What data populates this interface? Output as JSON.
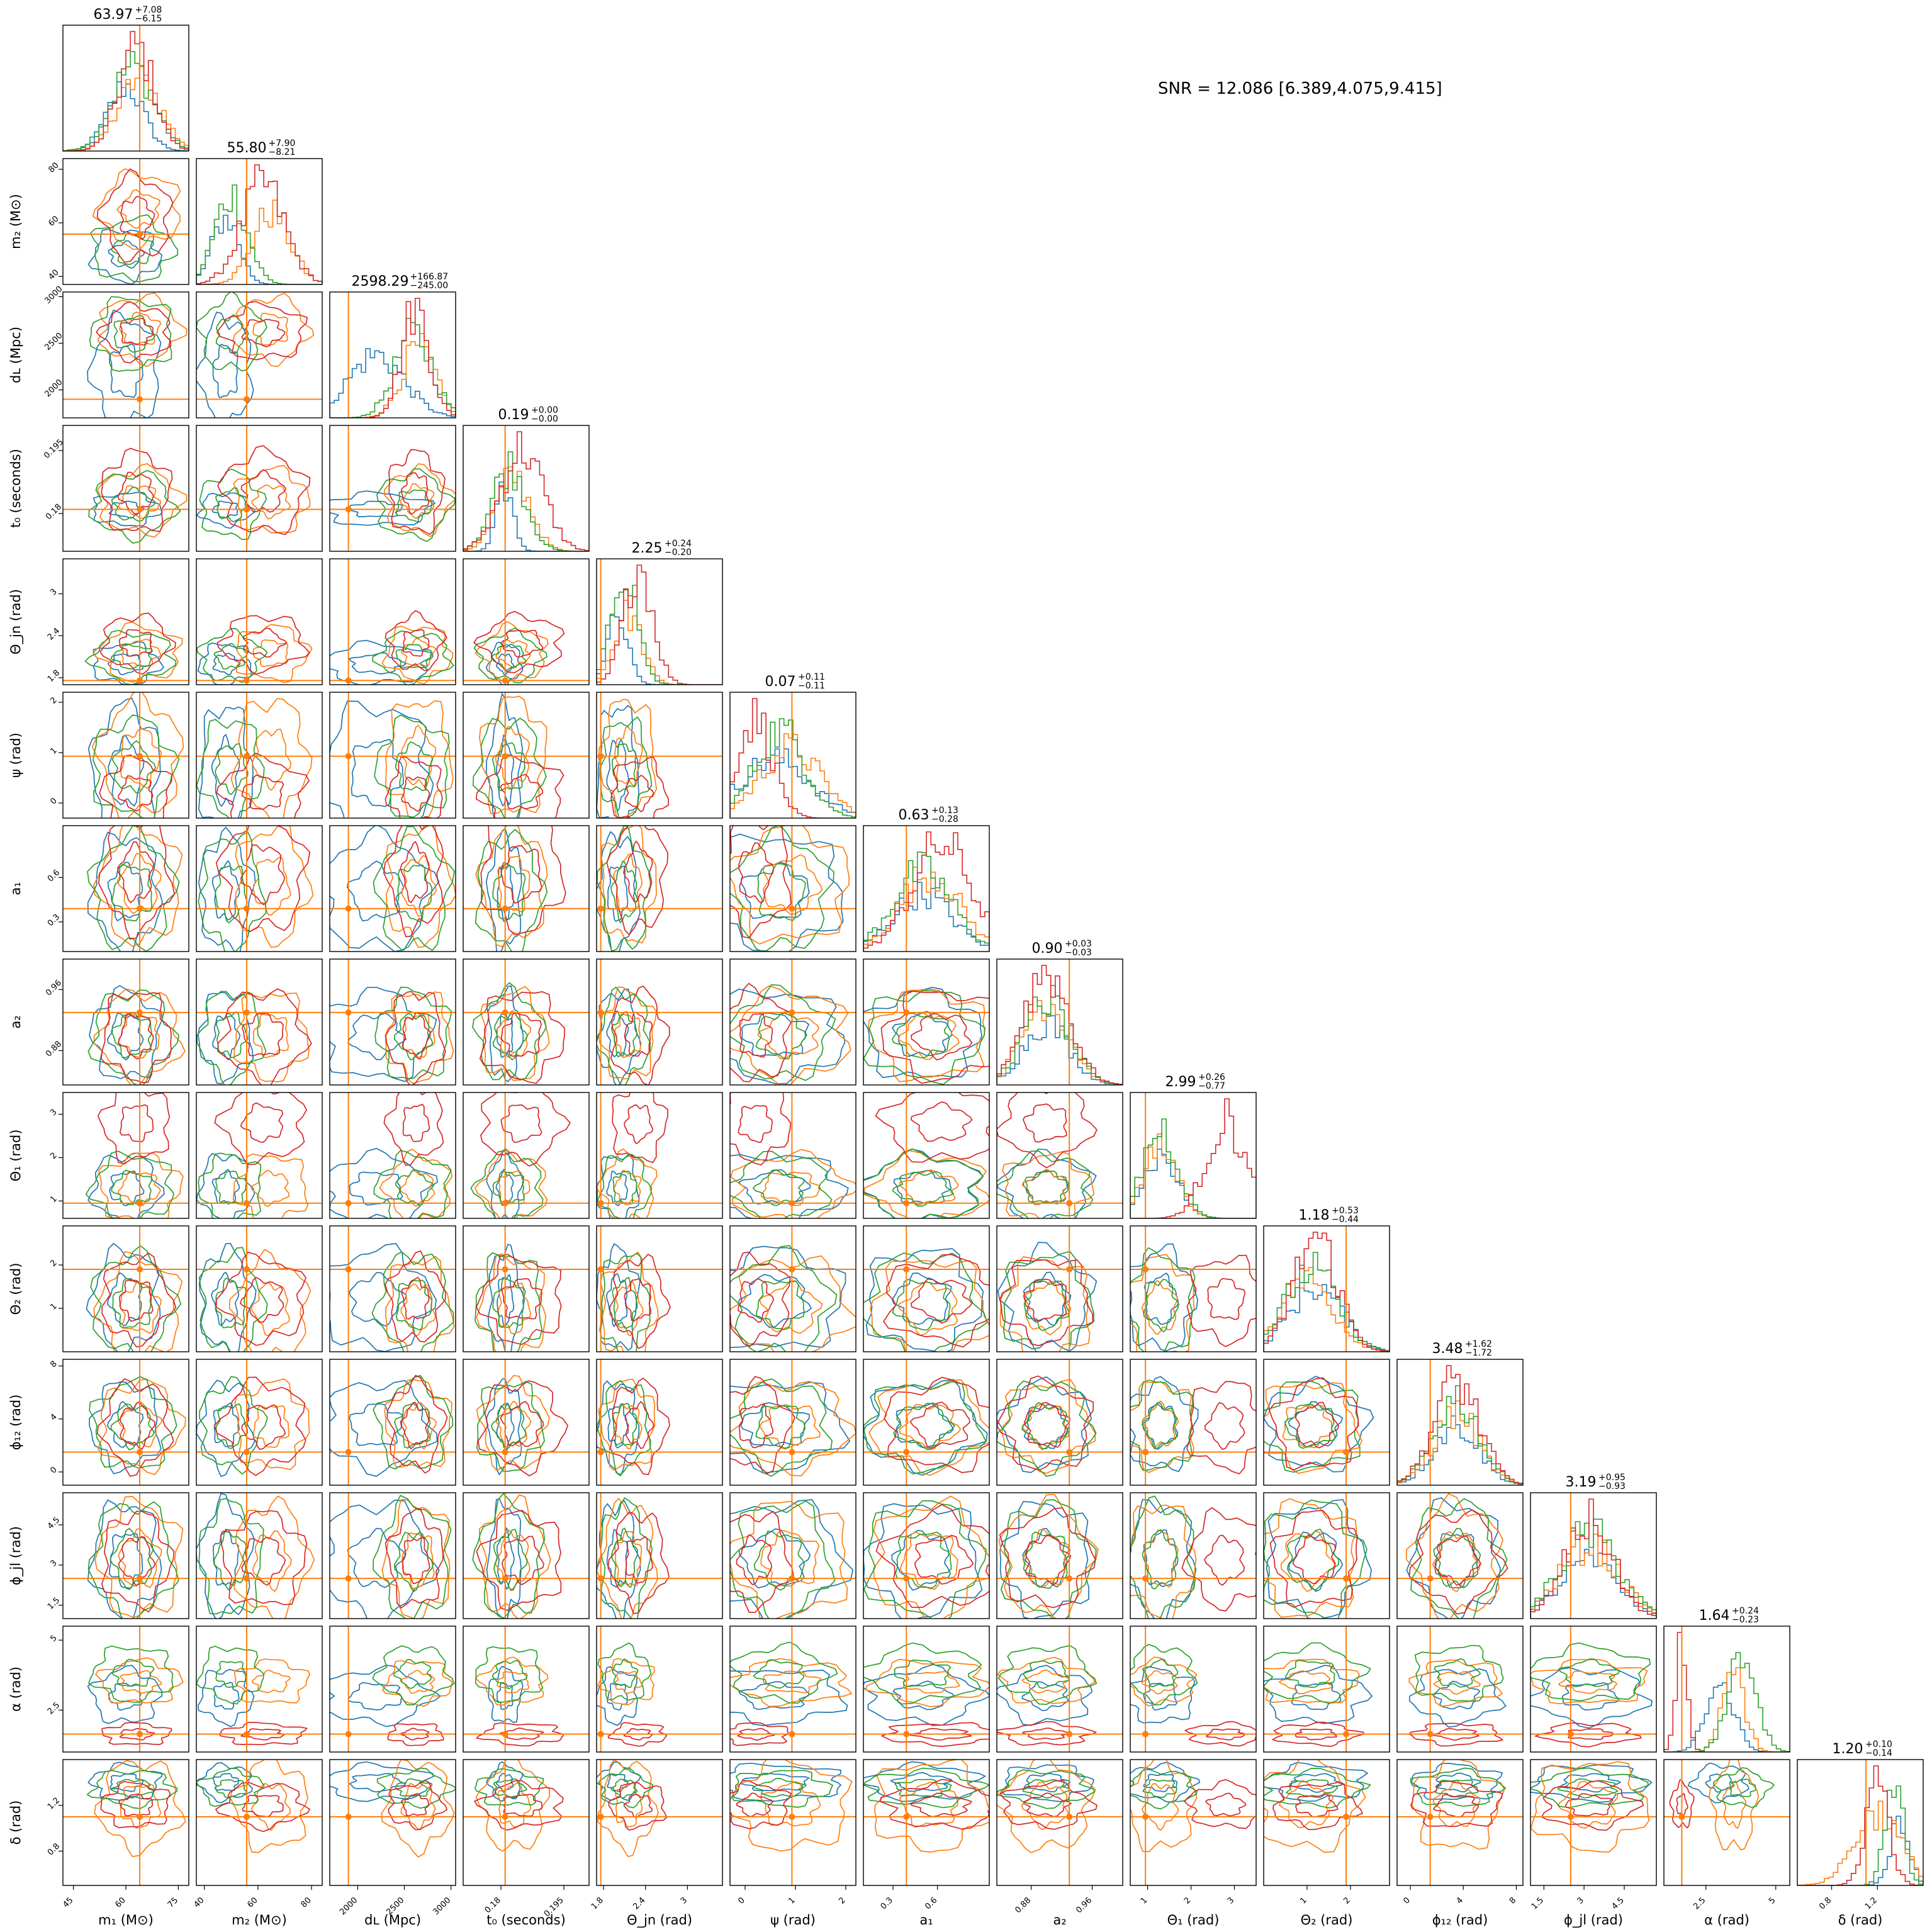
{
  "figure": {
    "snr_text": "SNR = 12.086 [6.389,4.075,9.415]"
  },
  "colors": {
    "blue": "#1f77b4",
    "orange": "#ff7f0e",
    "green": "#2ca02c",
    "red": "#d62728"
  },
  "chart_data": {
    "type": "corner",
    "title": "",
    "series": [
      {
        "name": "",
        "color": "#1f77b4"
      },
      {
        "name": "",
        "color": "#ff7f0e"
      },
      {
        "name": "",
        "color": "#2ca02c"
      },
      {
        "name": "",
        "color": "#d62728"
      }
    ],
    "parameters": [
      {
        "name": "m1",
        "label": "m₁ (M⊙)",
        "range": [
          42,
          78
        ],
        "ticks": [
          45,
          60,
          75
        ],
        "title": "63.97",
        "plus": "+7.08",
        "minus": "−6.15",
        "truth": 63.97,
        "centers": [
          [
            60,
            5
          ],
          [
            64,
            6
          ],
          [
            62,
            6
          ],
          [
            63,
            5
          ]
        ]
      },
      {
        "name": "m2",
        "label": "m₂ (M⊙)",
        "range": [
          37,
          84
        ],
        "ticks": [
          40,
          60,
          80
        ],
        "title": "55.80",
        "plus": "+7.90",
        "minus": "−8.21",
        "truth": 55.8,
        "centers": [
          [
            48,
            5
          ],
          [
            65,
            7
          ],
          [
            50,
            6
          ],
          [
            62,
            8
          ]
        ]
      },
      {
        "name": "dL",
        "label": "dʟ (Mpc)",
        "range": [
          1700,
          3050
        ],
        "ticks": [
          2000,
          2500,
          3000
        ],
        "title": "2598.29",
        "plus": "+166.87",
        "minus": "−245.00",
        "truth": 1900,
        "centers": [
          [
            2200,
            300
          ],
          [
            2650,
            180
          ],
          [
            2600,
            200
          ],
          [
            2620,
            150
          ]
        ]
      },
      {
        "name": "t0",
        "label": "t₀ (seconds)",
        "range": [
          0.171,
          0.201
        ],
        "ticks": [
          0.18,
          0.195
        ],
        "title": "0.19",
        "plus": "+0.00",
        "minus": "−0.00",
        "truth": 0.181,
        "centers": [
          [
            0.181,
            0.002
          ],
          [
            0.183,
            0.004
          ],
          [
            0.182,
            0.004
          ],
          [
            0.185,
            0.005
          ]
        ]
      },
      {
        "name": "theta_jn",
        "label": "Θ_jn (rad)",
        "range": [
          1.7,
          3.5
        ],
        "ticks": [
          1.8,
          2.4,
          3.0
        ],
        "title": "2.25",
        "plus": "+0.24",
        "minus": "−0.20",
        "truth": 1.76,
        "centers": [
          [
            2.0,
            0.15
          ],
          [
            2.15,
            0.2
          ],
          [
            2.1,
            0.18
          ],
          [
            2.3,
            0.2
          ]
        ]
      },
      {
        "name": "psi",
        "label": "ψ (rad)",
        "range": [
          -0.3,
          2.2
        ],
        "ticks": [
          0,
          1,
          2
        ],
        "title": "0.07",
        "plus": "+0.11",
        "minus": "−0.11",
        "truth": 0.93,
        "centers": [
          [
            0.6,
            0.7
          ],
          [
            0.9,
            0.6
          ],
          [
            0.7,
            0.5
          ],
          [
            0.2,
            0.35
          ]
        ]
      },
      {
        "name": "a1",
        "label": "a₁",
        "range": [
          0.1,
          0.95
        ],
        "ticks": [
          0.3,
          0.6
        ],
        "title": "0.63",
        "plus": "+0.13",
        "minus": "−0.28",
        "truth": 0.39,
        "centers": [
          [
            0.5,
            0.2
          ],
          [
            0.55,
            0.2
          ],
          [
            0.5,
            0.2
          ],
          [
            0.63,
            0.2
          ]
        ]
      },
      {
        "name": "a2",
        "label": "a₂",
        "range": [
          0.835,
          1.0
        ],
        "ticks": [
          0.88,
          0.96
        ],
        "title": "0.90",
        "plus": "+0.03",
        "minus": "−0.03",
        "truth": 0.93,
        "centers": [
          [
            0.9,
            0.03
          ],
          [
            0.9,
            0.03
          ],
          [
            0.9,
            0.03
          ],
          [
            0.9,
            0.03
          ]
        ]
      },
      {
        "name": "theta1",
        "label": "Θ₁ (rad)",
        "range": [
          0.6,
          3.5
        ],
        "ticks": [
          1,
          2,
          3
        ],
        "title": "2.99",
        "plus": "+0.26",
        "minus": "−0.77",
        "truth": 0.95,
        "centers": [
          [
            1.3,
            0.4
          ],
          [
            1.3,
            0.4
          ],
          [
            1.3,
            0.4
          ],
          [
            2.8,
            0.45
          ]
        ]
      },
      {
        "name": "theta2",
        "label": "Θ₂ (rad)",
        "range": [
          0.0,
          2.9
        ],
        "ticks": [
          1,
          2
        ],
        "title": "1.18",
        "plus": "+0.53",
        "minus": "−0.44",
        "truth": 1.9,
        "centers": [
          [
            1.2,
            0.6
          ],
          [
            1.0,
            0.6
          ],
          [
            1.1,
            0.6
          ],
          [
            1.2,
            0.5
          ]
        ]
      },
      {
        "name": "phi12",
        "label": "ϕ₁₂ (rad)",
        "range": [
          -1,
          8.5
        ],
        "ticks": [
          0,
          4,
          8
        ],
        "title": "3.48",
        "plus": "+1.62",
        "minus": "−1.72",
        "truth": 1.5,
        "centers": [
          [
            3.5,
            1.7
          ],
          [
            3.5,
            1.7
          ],
          [
            3.5,
            1.7
          ],
          [
            3.5,
            1.7
          ]
        ]
      },
      {
        "name": "phi_jl",
        "label": "ϕ_jl (rad)",
        "range": [
          1.0,
          5.7
        ],
        "ticks": [
          1.5,
          3.0,
          4.5
        ],
        "title": "3.19",
        "plus": "+0.95",
        "minus": "−0.93",
        "truth": 2.5,
        "centers": [
          [
            3.2,
            1.1
          ],
          [
            3.2,
            1.1
          ],
          [
            3.2,
            1.1
          ],
          [
            3.2,
            0.9
          ]
        ]
      },
      {
        "name": "alpha",
        "label": "α (rad)",
        "range": [
          1.0,
          5.5
        ],
        "ticks": [
          2.5,
          5.0
        ],
        "title": "1.64",
        "plus": "+0.24",
        "minus": "−0.23",
        "truth": 1.64,
        "centers": [
          [
            3.0,
            0.5
          ],
          [
            3.5,
            0.4
          ],
          [
            3.8,
            0.5
          ],
          [
            1.64,
            0.2
          ]
        ]
      },
      {
        "name": "delta",
        "label": "δ (rad)",
        "range": [
          0.5,
          1.6
        ],
        "ticks": [
          0.8,
          1.2
        ],
        "title": "1.20",
        "plus": "+0.10",
        "minus": "−0.14",
        "truth": 1.1,
        "centers": [
          [
            1.4,
            0.08
          ],
          [
            1.2,
            0.2
          ],
          [
            1.35,
            0.08
          ],
          [
            1.2,
            0.1
          ]
        ]
      }
    ]
  }
}
